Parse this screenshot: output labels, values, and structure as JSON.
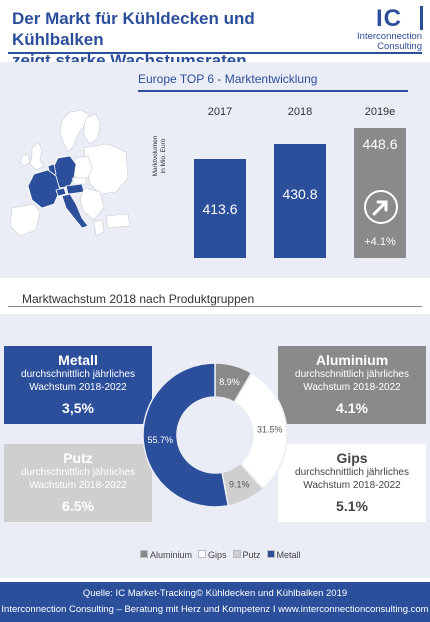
{
  "header": {
    "title_line1": "Der Markt für Kühldecken und Kühlbalken",
    "title_line2": "zeigt starke Wachstumsraten"
  },
  "logo": {
    "mark": "IC",
    "line1": "Interconnection",
    "line2": "Consulting"
  },
  "colors": {
    "blue": "#2c4f9b",
    "gray": "#8a8a8a",
    "light_gray": "#cfcfcf",
    "white": "#ffffff",
    "panel": "#eaedf6"
  },
  "top_chart": {
    "title": "Europe TOP 6 - Marktentwicklung",
    "ylabel_line1": "Marktvolumen",
    "ylabel_line2": "in Mio. Euro",
    "growth_label": "+4.1%",
    "growth_icon": "arrow-up-right-icon"
  },
  "mid_section": {
    "title": "Marktwachstum 2018 nach Produktgruppen"
  },
  "boxes": {
    "metall": {
      "name": "Metall",
      "sub1": "durchschnittlich jährliches",
      "sub2": "Wachstum 2018-2022",
      "value": "3,5%"
    },
    "aluminium": {
      "name": "Aluminium",
      "sub1": "durchschnittlich jährliches",
      "sub2": "Wachstum 2018-2022",
      "value": "4.1%"
    },
    "putz": {
      "name": "Putz",
      "sub1": "durchschnittlich jährliches",
      "sub2": "Wachstum 2018-2022",
      "value": "6.5%"
    },
    "gips": {
      "name": "Gips",
      "sub1": "durchschnittlich jährliches",
      "sub2": "Wachstum 2018-2022",
      "value": "5.1%"
    }
  },
  "footer": {
    "line1": "Quelle: IC Market-Tracking© Kühldecken und Kühlbalken 2019",
    "line2": "Interconnection Consulting – Beratung mit Herz und Kompetenz  I  www.interconnectionconsulting.com"
  },
  "chart_data": [
    {
      "type": "bar",
      "title": "Europe TOP 6 - Marktentwicklung",
      "categories": [
        "2017",
        "2018",
        "2019e"
      ],
      "values": [
        413.6,
        430.8,
        448.6
      ],
      "value_labels": [
        "413.6",
        "430.8",
        "448.6"
      ],
      "ylabel": "Marktvolumen in Mio. Euro",
      "bar_colors": [
        "#2c4f9b",
        "#2c4f9b",
        "#8a8a8a"
      ],
      "ylim": [
        0,
        460
      ]
    },
    {
      "type": "pie",
      "title": "Marktwachstum 2018 nach Produktgruppen",
      "categories": [
        "Aluminium",
        "Gips",
        "Putz",
        "Metall"
      ],
      "values": [
        8.9,
        31.5,
        9.1,
        55.7
      ],
      "value_labels": [
        "8.9%",
        "31.5%",
        "9.1%",
        "55.7%"
      ],
      "colors": [
        "#8a8a8a",
        "#ffffff",
        "#cfcfcf",
        "#2c4f9b"
      ],
      "legend_position": "bottom"
    }
  ]
}
